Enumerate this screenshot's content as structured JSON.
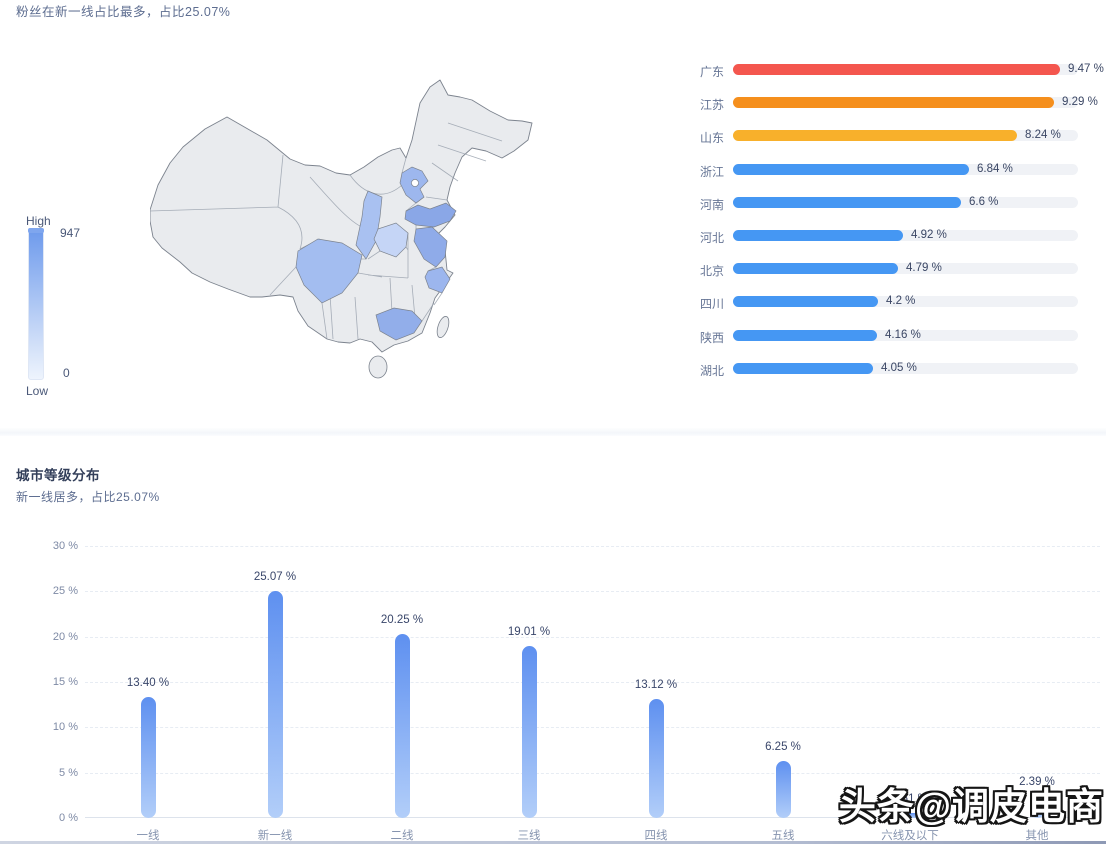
{
  "page": {
    "watermark": "头条@调皮电商"
  },
  "region_section": {
    "subtitle": "粉丝在新一线占比最多，占比25.07%",
    "legend": {
      "high_label": "High",
      "low_label": "Low",
      "max_value": "947",
      "min_value": "0"
    }
  },
  "city_section": {
    "title": "城市等级分布",
    "subtitle": "新一线居多，占比25.07%"
  },
  "map": {
    "base_fill": "#e9ebee",
    "border_color": "#7c838e",
    "highlighted_provinces": [
      {
        "name": "河北",
        "key": "hebei",
        "color": "#9db7ee"
      },
      {
        "name": "山东",
        "key": "shandong",
        "color": "#8aa7e7"
      },
      {
        "name": "江苏",
        "key": "jiangsu",
        "color": "#8fabe9"
      },
      {
        "name": "浙江",
        "key": "zhejiang",
        "color": "#9cb6ee"
      },
      {
        "name": "河南",
        "key": "henan",
        "color": "#c5d5f6"
      },
      {
        "name": "陕西",
        "key": "shaanxi",
        "color": "#a9c1f1"
      },
      {
        "name": "四川",
        "key": "sichuan",
        "color": "#a3bdf0"
      },
      {
        "name": "广东",
        "key": "guangdong",
        "color": "#92aeea"
      }
    ]
  },
  "chart_data": [
    {
      "type": "bar",
      "orientation": "horizontal",
      "categories": [
        "广东",
        "江苏",
        "山东",
        "浙江",
        "河南",
        "河北",
        "北京",
        "四川",
        "陕西",
        "湖北"
      ],
      "values": [
        9.47,
        9.29,
        8.24,
        6.84,
        6.6,
        4.92,
        4.79,
        4.2,
        4.16,
        4.05
      ],
      "labels": [
        "9.47 %",
        "9.29 %",
        "8.24 %",
        "6.84 %",
        "6.6 %",
        "4.92 %",
        "4.79 %",
        "4.2 %",
        "4.16 %",
        "4.05 %"
      ],
      "bar_colors": [
        "#f4564e",
        "#f58f1d",
        "#f8b02b",
        "#4597f3",
        "#4597f3",
        "#4597f3",
        "#4597f3",
        "#4597f3",
        "#4597f3",
        "#4597f3"
      ],
      "xlim": [
        0,
        10
      ],
      "track_color": "#f0f2f6",
      "legend_position": "none",
      "grid": false
    },
    {
      "type": "bar",
      "orientation": "vertical",
      "title": "城市等级分布",
      "subtitle": "新一线居多，占比25.07%",
      "categories": [
        "一线",
        "新一线",
        "二线",
        "三线",
        "四线",
        "五线",
        "六线及以下",
        "其他"
      ],
      "values": [
        13.4,
        25.07,
        20.25,
        19.01,
        13.12,
        6.25,
        0.51,
        2.39
      ],
      "labels": [
        "13.40 %",
        "25.07 %",
        "20.25 %",
        "19.01 %",
        "13.12 %",
        "6.25 %",
        "0.51 %",
        "2.39 %"
      ],
      "ylim": [
        0,
        30
      ],
      "yticks": [
        "30 %",
        "25 %",
        "20 %",
        "15 %",
        "10 %",
        "5 %",
        "0 %"
      ],
      "bar_gradient_top": "#5e90f0",
      "bar_gradient_bottom": "#b2cef9",
      "grid": true,
      "legend_position": "none"
    }
  ]
}
